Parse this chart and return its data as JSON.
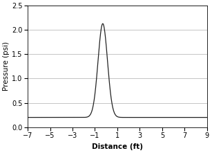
{
  "title": "",
  "xlabel": "Distance (ft)",
  "ylabel": "Pressure (psi)",
  "xlim": [
    -7,
    9
  ],
  "ylim": [
    0,
    2.5
  ],
  "xticks": [
    -7,
    -5,
    -3,
    -1,
    1,
    3,
    5,
    7,
    9
  ],
  "yticks": [
    0.0,
    0.5,
    1.0,
    1.5,
    2.0,
    2.5
  ],
  "peak": 2.13,
  "peak_x": -0.3,
  "baseline": 0.2,
  "sigma": 0.42,
  "line_color": "#222222",
  "line_width": 0.9,
  "bg_color": "#ffffff",
  "grid_color": "#bbbbbb",
  "grid_linewidth": 0.6,
  "font_size_label": 7.5,
  "font_size_tick": 7
}
